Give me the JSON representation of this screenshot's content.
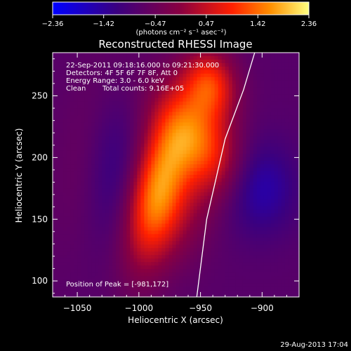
{
  "chart_data": {
    "type": "heatmap",
    "title": "Reconstructed RHESSI Image",
    "xlabel": "Heliocentric X (arcsec)",
    "ylabel": "Heliocentric Y (arcsec)",
    "xlim": [
      -1070,
      -870
    ],
    "ylim": [
      87,
      285
    ],
    "x_ticks": [
      -1050,
      -1000,
      -950,
      -900
    ],
    "x_tick_labels": [
      "−1050",
      "−1000",
      "−950",
      "−900"
    ],
    "y_ticks": [
      100,
      150,
      200,
      250
    ],
    "y_tick_labels": [
      "100",
      "150",
      "200",
      "250"
    ],
    "colorbar": {
      "ticks": [
        -2.36,
        -1.42,
        -0.47,
        0.47,
        1.42,
        2.36
      ],
      "tick_labels": [
        "−2.36",
        "−1.42",
        "−0.47",
        "0.47",
        "1.42",
        "2.36"
      ],
      "unit_label": "(photons cm⁻² s⁻¹ asec⁻²)",
      "range": [
        -2.36,
        2.36
      ]
    },
    "annotations": {
      "time_range": "22-Sep-2011 09:18:16.000 to 09:21:30.000",
      "detectors": "Detectors: 4F 5F 6F 7F 8F, Att 0",
      "energy": "Energy Range: 3.0 - 6.0 keV",
      "method": "Clean",
      "counts": "Total counts: 9.16E+05",
      "peak": "Position of Peak = [-981,172]"
    },
    "peak_position": [
      -981,
      172
    ],
    "limb_curve": [
      {
        "x": -953,
        "y": 87
      },
      {
        "x": -945,
        "y": 150
      },
      {
        "x": -930,
        "y": 215
      },
      {
        "x": -915,
        "y": 255
      },
      {
        "x": -906,
        "y": 285
      }
    ],
    "intensity_sources": [
      {
        "x": -985,
        "y": 172,
        "amp": 2.36,
        "sx": 16,
        "sy": 42,
        "rot": 0.22
      },
      {
        "x": -950,
        "y": 212,
        "amp": 1.85,
        "sx": 20,
        "sy": 34,
        "rot": -0.55
      },
      {
        "x": -942,
        "y": 260,
        "amp": 1.65,
        "sx": 15,
        "sy": 20,
        "rot": -0.2
      },
      {
        "x": -960,
        "y": 152,
        "amp": 0.5,
        "sx": 18,
        "sy": 30,
        "rot": 0.3
      },
      {
        "x": -1040,
        "y": 215,
        "amp": 0.25,
        "sx": 18,
        "sy": 60,
        "rot": 0.2
      }
    ],
    "intensity_sinks": [
      {
        "x": -905,
        "y": 175,
        "amp": 1.0,
        "sx": 22,
        "sy": 26
      },
      {
        "x": -1020,
        "y": 190,
        "amp": 0.55,
        "sx": 16,
        "sy": 45
      }
    ],
    "background_level": -0.75,
    "grid": false
  },
  "footer": {
    "timestamp": "29-Aug-2013 17:04"
  }
}
